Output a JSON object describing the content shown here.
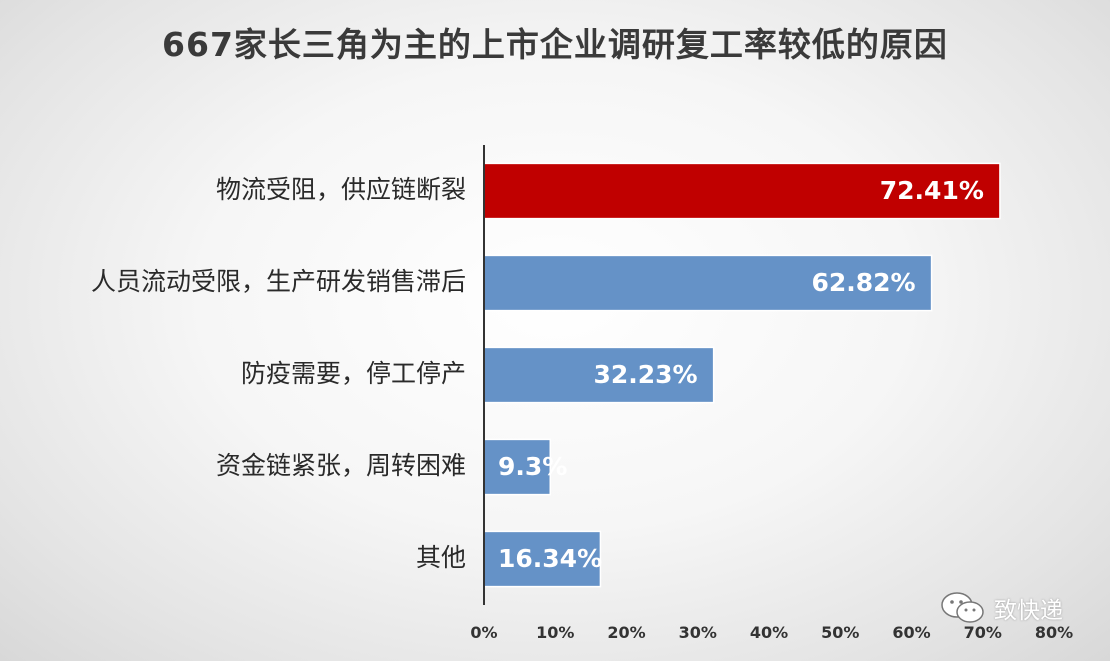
{
  "chart_data": {
    "type": "bar",
    "orientation": "horizontal",
    "title": "667家长三角为主的上市企业调研复工率较低的原因",
    "categories": [
      "物流受阻，供应链断裂",
      "人员流动受限，生产研发销售滞后",
      "防疫需要，停工停产",
      "资金链紧张，周转困难",
      "其他"
    ],
    "values": [
      72.41,
      62.82,
      32.23,
      9.3,
      16.34
    ],
    "value_labels": [
      "72.41%",
      "62.82%",
      "32.23%",
      "9.3%",
      "16.34%"
    ],
    "bar_colors": [
      "#c00000",
      "#6592c7",
      "#6592c7",
      "#6592c7",
      "#6592c7"
    ],
    "xlim": [
      0,
      80
    ],
    "xticks": [
      "0%",
      "10%",
      "20%",
      "30%",
      "40%",
      "50%",
      "60%",
      "70%",
      "80%"
    ],
    "grid": false,
    "legend": "none"
  },
  "watermark": {
    "icon": "wechat-icon",
    "text": "致快递"
  }
}
